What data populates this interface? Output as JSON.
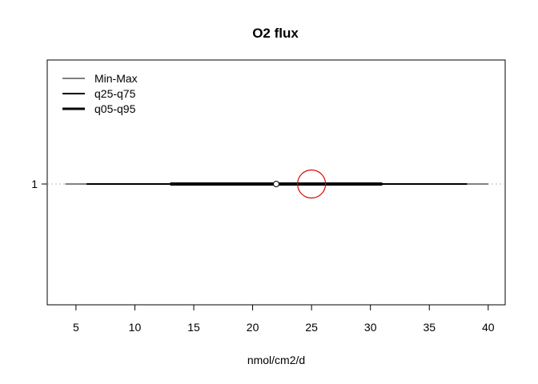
{
  "chart_data": {
    "type": "boxplot-ranges",
    "title": "O2 flux",
    "xlabel": "nmol/cm2/d",
    "ylabel": "",
    "xlim": [
      2.56,
      41.44
    ],
    "x_ticks": [
      5,
      10,
      15,
      20,
      25,
      30,
      35,
      40
    ],
    "category_label": "1",
    "legend": {
      "position": "top-left",
      "entries": [
        {
          "label": "Min-Max",
          "line_weight": "thin"
        },
        {
          "label": "q25-q75",
          "line_weight": "medium"
        },
        {
          "label": "q05-q95",
          "line_weight": "thick"
        }
      ]
    },
    "series": {
      "min": 4.1,
      "max": 40.0,
      "q05": 5.9,
      "q95": 38.2,
      "q25": 13.0,
      "q75": 31.0,
      "median_point": 22.0,
      "highlight_value": 25.0,
      "highlight_color": "#dd0000"
    },
    "grid": false
  }
}
